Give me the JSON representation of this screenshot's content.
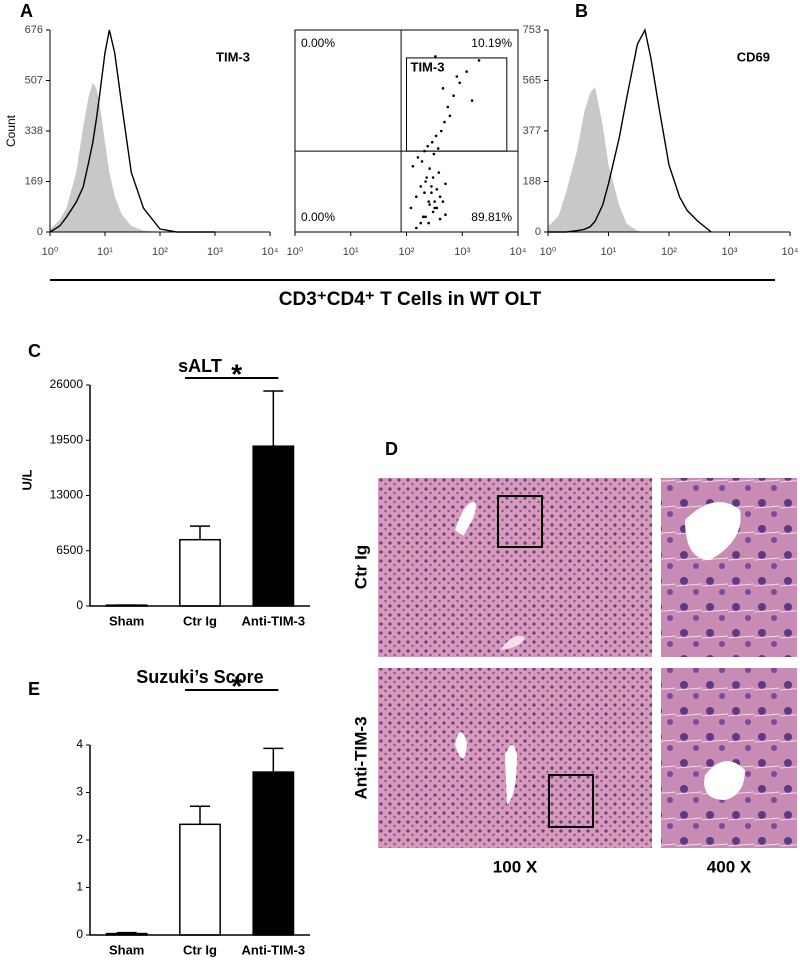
{
  "figure_caption": "CD3⁺CD4⁺ T Cells in WT OLT",
  "chart_data": [
    {
      "type": "flowhist",
      "panel": "A",
      "annotation": "TIM-3",
      "ylabel": "Count",
      "log_x": true,
      "xlim": [
        1,
        10000
      ],
      "ylim": [
        0,
        676
      ],
      "xticks": [
        {
          "value": 1,
          "label": "10⁰"
        },
        {
          "value": 10,
          "label": "10¹"
        },
        {
          "value": 100,
          "label": "10²"
        },
        {
          "value": 1000,
          "label": "10³"
        },
        {
          "value": 10000,
          "label": "10⁴"
        }
      ],
      "yticks": [
        0,
        169,
        338,
        507,
        676
      ],
      "x": [
        1,
        1.5,
        2,
        3,
        4,
        5,
        6,
        7,
        8,
        10,
        12,
        15,
        20,
        30,
        50,
        100,
        200,
        1000
      ],
      "series": [
        {
          "color": "#c8c8c8",
          "fill": true,
          "values": [
            10,
            40,
            80,
            200,
            350,
            450,
            500,
            480,
            430,
            300,
            200,
            120,
            60,
            20,
            5,
            0,
            0,
            0
          ]
        },
        {
          "color": "#000000",
          "fill": false,
          "values": [
            0,
            20,
            50,
            100,
            150,
            230,
            300,
            380,
            460,
            600,
            676,
            600,
            430,
            200,
            80,
            10,
            0,
            0
          ]
        }
      ]
    },
    {
      "type": "scatter",
      "gate_label": "TIM-3",
      "quadrant_labels": [
        "0.00%",
        "10.19%",
        "0.00%",
        "89.81%"
      ],
      "log_x": true,
      "log_y": true,
      "xlim": [
        1,
        10000
      ],
      "ylim": [
        1,
        10000
      ],
      "xticks": [
        {
          "value": 1,
          "label": "10⁰"
        },
        {
          "value": 10,
          "label": "10¹"
        },
        {
          "value": 100,
          "label": "10²"
        },
        {
          "value": 1000,
          "label": "10³"
        },
        {
          "value": 10000,
          "label": "10⁴"
        }
      ],
      "quadrant": [
        80,
        40
      ],
      "gate": [
        100,
        6300,
        40,
        2800
      ],
      "color": "#000000",
      "x": [
        120,
        150,
        180,
        200,
        220,
        250,
        280,
        300,
        320,
        350,
        380,
        400,
        450,
        500,
        130,
        160,
        190,
        210,
        240,
        260,
        290,
        310,
        340,
        370,
        420,
        480,
        550,
        600,
        700,
        900,
        1200,
        200,
        250,
        300,
        350,
        400,
        500,
        150,
        180,
        220,
        260,
        320,
        280,
        230,
        210,
        1500,
        2000,
        800,
        450,
        330
      ],
      "y": [
        3,
        5,
        8,
        2,
        10,
        4,
        6,
        12,
        3,
        7,
        15,
        5,
        4,
        9,
        20,
        30,
        25,
        40,
        50,
        18,
        60,
        35,
        80,
        45,
        100,
        150,
        300,
        200,
        500,
        900,
        1500,
        2,
        1.5,
        2.5,
        3,
        1.8,
        2.2,
        1.2,
        1.5,
        2,
        3.5,
        4,
        8,
        12,
        6,
        400,
        2500,
        1200,
        700,
        3000
      ]
    },
    {
      "type": "flowhist",
      "panel": "B",
      "annotation": "CD69",
      "log_x": true,
      "xlim": [
        1,
        10000
      ],
      "ylim": [
        0,
        753
      ],
      "xticks": [
        {
          "value": 1,
          "label": "10⁰"
        },
        {
          "value": 10,
          "label": "10¹"
        },
        {
          "value": 100,
          "label": "10²"
        },
        {
          "value": 1000,
          "label": "10³"
        },
        {
          "value": 10000,
          "label": "10⁴"
        }
      ],
      "yticks": [
        0,
        188,
        377,
        565,
        753
      ],
      "x": [
        1,
        1.5,
        2,
        3,
        4,
        5,
        6,
        8,
        10,
        15,
        20,
        30,
        40,
        50,
        70,
        100,
        150,
        200,
        300,
        500
      ],
      "series": [
        {
          "color": "#c8c8c8",
          "fill": true,
          "values": [
            20,
            60,
            150,
            300,
            450,
            520,
            540,
            400,
            250,
            100,
            30,
            5,
            0,
            0,
            0,
            0,
            0,
            0,
            0,
            0
          ]
        },
        {
          "color": "#000000",
          "fill": false,
          "values": [
            0,
            0,
            0,
            5,
            10,
            20,
            40,
            100,
            180,
            350,
            500,
            700,
            753,
            650,
            450,
            250,
            130,
            80,
            40,
            0
          ]
        }
      ]
    },
    {
      "type": "bar",
      "panel": "C",
      "title": "sALT",
      "ylabel": "U/L",
      "categories": [
        "Sham",
        "Ctr Ig",
        "Anti-TIM-3"
      ],
      "values": [
        100,
        7800,
        18800
      ],
      "errors": [
        0,
        1600,
        6500
      ],
      "colors": [
        "#ffffff",
        "#ffffff",
        "#000000"
      ],
      "ylim": [
        0,
        26000
      ],
      "yticks": [
        0,
        6500,
        13000,
        19500,
        26000
      ],
      "significance": {
        "from": 1,
        "to": 2,
        "label": "*"
      }
    },
    {
      "type": "bar",
      "panel": "E",
      "title": "Suzuki’s Score",
      "categories": [
        "Sham",
        "Ctr Ig",
        "Anti-TIM-3"
      ],
      "values": [
        0.03,
        2.33,
        3.43
      ],
      "errors": [
        0.02,
        0.38,
        0.5
      ],
      "colors": [
        "#ffffff",
        "#ffffff",
        "#000000"
      ],
      "ylim": [
        0,
        4
      ],
      "yticks": [
        0,
        1,
        2,
        3,
        4
      ],
      "significance": {
        "from": 1,
        "to": 2,
        "label": "*"
      }
    }
  ],
  "figure_d": {
    "panel": "D",
    "rows": [
      "Ctr Ig",
      "Anti-TIM-3"
    ],
    "columns": [
      "100 X",
      "400 X"
    ]
  }
}
